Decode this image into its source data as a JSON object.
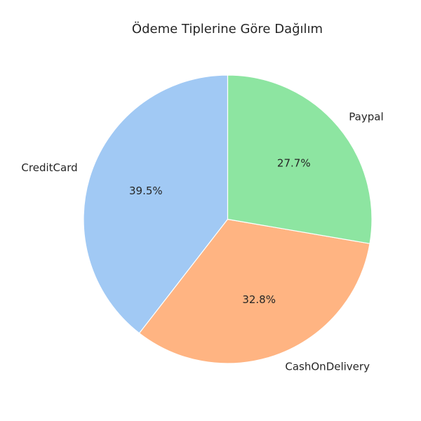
{
  "chart_data": {
    "type": "pie",
    "title": "Ödeme Tiplerine Göre Dağılım",
    "labels": [
      "CreditCard",
      "CashOnDelivery",
      "Paypal"
    ],
    "values": [
      39.5,
      32.8,
      27.7
    ],
    "value_labels": [
      "39.5%",
      "32.8%",
      "27.7%"
    ],
    "colors": [
      "#a1c9f4",
      "#ffb482",
      "#8de5a1"
    ],
    "start_angle_deg": 90,
    "direction": "counterclockwise"
  }
}
